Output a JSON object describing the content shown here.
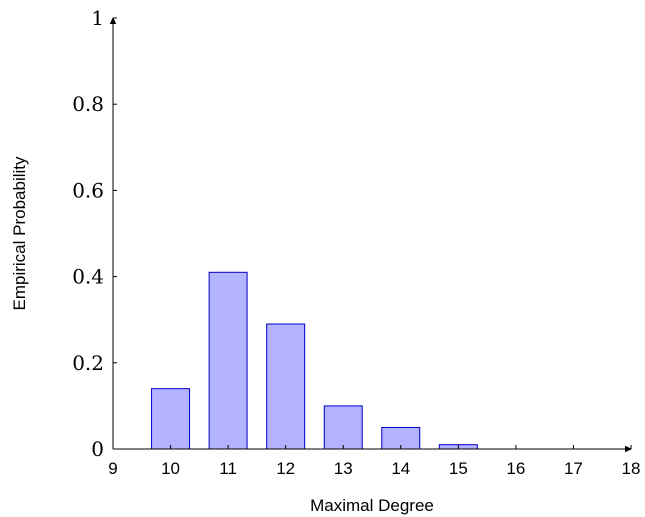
{
  "chart_data": {
    "type": "bar",
    "xlabel": "Maximal Degree",
    "ylabel": "Empirical Probability",
    "x": [
      10,
      11,
      12,
      13,
      14,
      15,
      16,
      17
    ],
    "values": [
      0.14,
      0.41,
      0.29,
      0.1,
      0.05,
      0.01,
      0,
      0
    ],
    "xlim": [
      9,
      18
    ],
    "ylim": [
      0,
      1
    ],
    "xticks": [
      9,
      10,
      11,
      12,
      13,
      14,
      15,
      16,
      17,
      18
    ],
    "yticks": [
      0,
      0.2,
      0.4,
      0.6,
      0.8,
      1
    ],
    "ytick_labels": [
      "0",
      "0.2",
      "0.4",
      "0.6",
      "0.8",
      "1"
    ],
    "grid": false,
    "bar_fill": "#b3b3ff",
    "bar_stroke": "#0000cc",
    "axis_color": "#000000"
  }
}
